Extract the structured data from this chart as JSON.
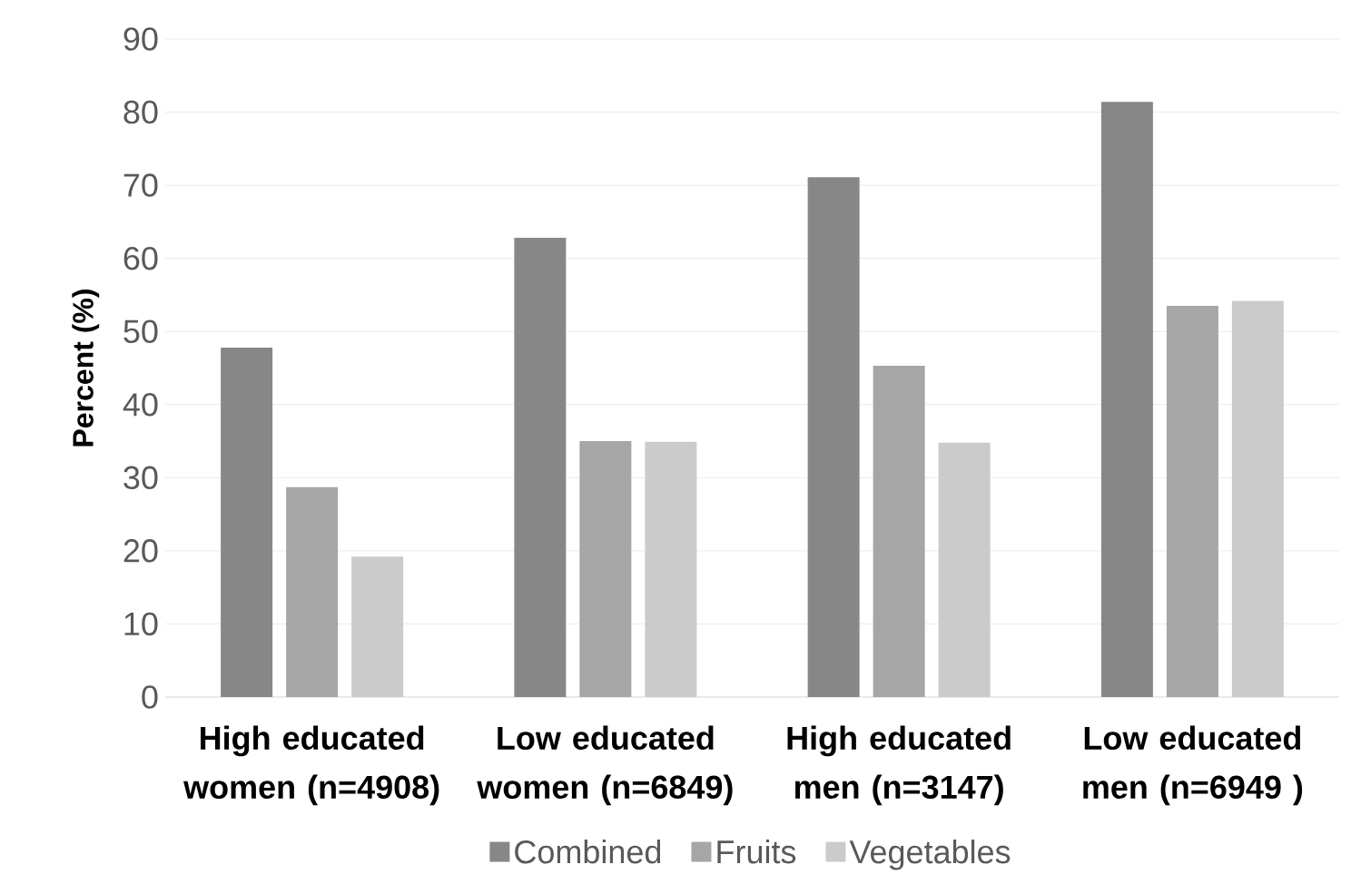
{
  "chart_data": {
    "type": "bar",
    "ylabel": "Percent (%)",
    "categories": [
      "High educated women (n=4908)",
      "Low educated women (n=6849)",
      "High educated men (n=3147)",
      "Low educated men (n=6949 )"
    ],
    "series": [
      {
        "name": "Combined",
        "color": "#878787",
        "values": [
          47.8,
          62.8,
          71.1,
          81.4
        ]
      },
      {
        "name": "Fruits",
        "color": "#a6a6a6",
        "values": [
          28.7,
          35.0,
          45.3,
          53.5
        ]
      },
      {
        "name": "Vegetables",
        "color": "#cbcbcb",
        "values": [
          19.2,
          34.9,
          34.8,
          54.2
        ]
      }
    ],
    "ylim": [
      0,
      90
    ],
    "yticks": [
      0,
      10,
      20,
      30,
      40,
      50,
      60,
      70,
      80,
      90
    ],
    "grid": "y",
    "legend": "bottom"
  }
}
